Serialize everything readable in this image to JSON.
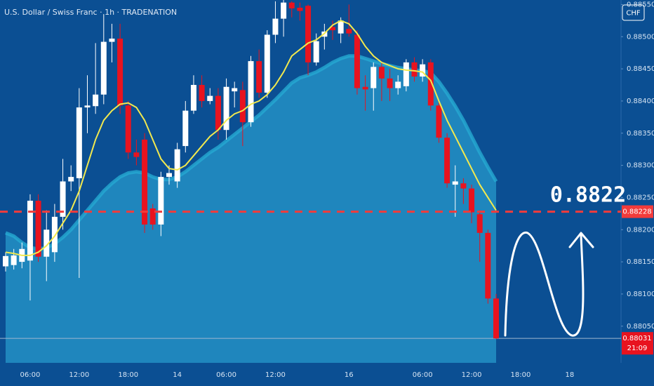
{
  "chart_data": {
    "type": "candlestick",
    "title": "U.S. Dollar / Swiss Franc · 1h · TRADENATION",
    "currency": "CHF",
    "categories": [
      null,
      null,
      null,
      "06:00",
      null,
      null,
      null,
      null,
      null,
      "12:00",
      null,
      null,
      null,
      null,
      null,
      "18:00",
      null,
      null,
      null,
      null,
      null,
      "14",
      null,
      null,
      null,
      null,
      null,
      "06:00",
      null,
      null,
      null,
      null,
      null,
      "12:00",
      null,
      null,
      null,
      null,
      null,
      null,
      null,
      null,
      "16",
      null,
      null,
      null,
      null,
      null,
      null,
      null,
      null,
      "06:00",
      null,
      null,
      null,
      null,
      null,
      "12:00",
      null,
      null,
      null,
      null,
      null,
      "18:00",
      null,
      null,
      null,
      null,
      null,
      "18",
      null
    ],
    "open": [
      0.88143,
      0.88145,
      0.8815,
      0.88152,
      0.88245,
      0.88158,
      0.88165,
      0.8822,
      0.88275,
      0.8828,
      0.8839,
      0.88392,
      0.8841,
      0.88492,
      0.88497,
      0.88393,
      0.8832,
      0.8834,
      0.88233,
      0.88208,
      0.88282,
      0.88275,
      0.8833,
      0.88385,
      0.88425,
      0.884,
      0.88408,
      0.88355,
      0.88415,
      0.88417,
      0.88367,
      0.88462,
      0.88413,
      0.88503,
      0.88528,
      0.88553,
      0.88545,
      0.88548,
      0.8846,
      0.885,
      0.88515,
      0.88505,
      0.88512,
      0.88503,
      0.88422,
      0.8842,
      0.88453,
      0.88435,
      0.8842,
      0.88423,
      0.8846,
      0.88438,
      0.8846,
      0.88393,
      0.88343,
      0.8827,
      0.88272,
      0.88264,
      0.88224,
      0.88195,
      0.88093,
      null,
      null,
      null,
      null,
      null,
      null,
      null,
      null,
      null,
      null
    ],
    "high": [
      0.88165,
      0.8817,
      0.8818,
      0.88255,
      0.88255,
      0.8823,
      0.8824,
      0.8831,
      0.883,
      0.8842,
      0.8844,
      0.8849,
      0.88535,
      0.8852,
      0.8852,
      0.884,
      0.8834,
      0.8835,
      0.8824,
      0.8829,
      0.883,
      0.88335,
      0.884,
      0.8844,
      0.8844,
      0.8842,
      0.8842,
      0.88435,
      0.8843,
      0.8843,
      0.8847,
      0.8848,
      0.8851,
      0.88555,
      0.88557,
      0.88555,
      0.88553,
      0.8855,
      0.88505,
      0.8852,
      0.88525,
      0.8853,
      0.8855,
      0.8851,
      0.8844,
      0.8846,
      0.8846,
      0.8845,
      0.8844,
      0.88465,
      0.88468,
      0.88465,
      0.88465,
      0.884,
      0.8835,
      0.883,
      0.8828,
      0.8827,
      0.8823,
      0.882,
      0.881,
      null,
      null,
      null,
      null,
      null,
      null,
      null,
      null,
      null,
      null
    ],
    "low": [
      0.88135,
      0.88138,
      0.8814,
      0.8809,
      0.8815,
      0.8812,
      0.8815,
      0.882,
      0.8826,
      0.88125,
      0.8835,
      0.8838,
      0.88395,
      0.8846,
      0.8838,
      0.8831,
      0.883,
      0.88195,
      0.882,
      0.8819,
      0.8827,
      0.88265,
      0.8832,
      0.8838,
      0.8839,
      0.88395,
      0.8834,
      0.8834,
      0.8839,
      0.8833,
      0.8836,
      0.88405,
      0.88405,
      0.8849,
      0.885,
      0.8853,
      0.88525,
      0.8844,
      0.88455,
      0.8848,
      0.88495,
      0.8849,
      0.885,
      0.8841,
      0.88385,
      0.88385,
      0.884,
      0.884,
      0.8841,
      0.88415,
      0.8843,
      0.8843,
      0.88385,
      0.88335,
      0.88265,
      0.8822,
      0.8824,
      0.8821,
      0.8815,
      0.88085,
      0.8803,
      null,
      null,
      null,
      null,
      null,
      null,
      null,
      null,
      null,
      null
    ],
    "close": [
      0.88159,
      0.8816,
      0.8817,
      0.88245,
      0.88158,
      0.882,
      0.8822,
      0.88275,
      0.88282,
      0.8839,
      0.88393,
      0.8841,
      0.88492,
      0.88497,
      0.88393,
      0.8832,
      0.88313,
      0.88208,
      0.88208,
      0.88282,
      0.88288,
      0.88325,
      0.88385,
      0.88425,
      0.884,
      0.88408,
      0.88355,
      0.88422,
      0.8842,
      0.88367,
      0.88462,
      0.88413,
      0.88503,
      0.88528,
      0.88553,
      0.88544,
      0.8854,
      0.8846,
      0.88493,
      0.88508,
      0.8851,
      0.88525,
      0.88505,
      0.8842,
      0.88418,
      0.88453,
      0.88435,
      0.8842,
      0.8843,
      0.8846,
      0.88438,
      0.88457,
      0.88393,
      0.88343,
      0.88272,
      0.88275,
      0.88264,
      0.88227,
      0.88195,
      0.88093,
      0.88031,
      null,
      null,
      null,
      null,
      null,
      null,
      null,
      null,
      null,
      null
    ],
    "up_color": "#ffffff",
    "down_color": "#e8131f",
    "ma_fast": {
      "color": "#f2e94e",
      "values": [
        0.88165,
        0.88163,
        0.8816,
        0.8816,
        0.88165,
        0.88175,
        0.8819,
        0.8821,
        0.8823,
        0.8826,
        0.883,
        0.8834,
        0.8837,
        0.88385,
        0.88395,
        0.88397,
        0.8839,
        0.8837,
        0.8834,
        0.8831,
        0.88295,
        0.88293,
        0.883,
        0.88315,
        0.8833,
        0.88345,
        0.88355,
        0.8837,
        0.8838,
        0.88385,
        0.88395,
        0.884,
        0.8841,
        0.88425,
        0.88445,
        0.8847,
        0.8848,
        0.8849,
        0.88495,
        0.88505,
        0.88518,
        0.88525,
        0.8852,
        0.88505,
        0.88485,
        0.8847,
        0.8846,
        0.88455,
        0.8845,
        0.88448,
        0.88447,
        0.88445,
        0.88432,
        0.884,
        0.8837,
        0.88345,
        0.8832,
        0.88295,
        0.8827,
        0.8825,
        0.8823,
        null,
        null,
        null,
        null,
        null,
        null,
        null,
        null,
        null,
        null
      ]
    },
    "ma_slow": {
      "color": "#25a9d2",
      "fill": "#1f86bd",
      "values": [
        0.88195,
        0.8819,
        0.8818,
        0.88172,
        0.8817,
        0.88172,
        0.88178,
        0.88188,
        0.882,
        0.88215,
        0.8823,
        0.88245,
        0.8826,
        0.88272,
        0.88282,
        0.88288,
        0.8829,
        0.88288,
        0.88282,
        0.88278,
        0.88278,
        0.88282,
        0.8829,
        0.883,
        0.8831,
        0.8832,
        0.88328,
        0.88338,
        0.88348,
        0.88358,
        0.88368,
        0.88378,
        0.8839,
        0.88402,
        0.88415,
        0.88428,
        0.88436,
        0.8844,
        0.88445,
        0.88452,
        0.8846,
        0.88466,
        0.8847,
        0.8847,
        0.88466,
        0.88462,
        0.88458,
        0.88455,
        0.88452,
        0.8845,
        0.88448,
        0.88447,
        0.88444,
        0.8843,
        0.88412,
        0.88392,
        0.8837,
        0.88345,
        0.8832,
        0.88297,
        0.88275,
        null,
        null,
        null,
        null,
        null,
        null,
        null,
        null,
        null,
        null
      ]
    },
    "ylim": [
      0.87993,
      0.88557
    ],
    "yticks": [
      {
        "value": 0.8805,
        "label": "0.88050"
      },
      {
        "value": 0.881,
        "label": "0.88100"
      },
      {
        "value": 0.8815,
        "label": "0.88150"
      },
      {
        "value": 0.882,
        "label": "0.88200"
      },
      {
        "value": 0.8825,
        "label": "0.88250"
      },
      {
        "value": 0.883,
        "label": "0.88300"
      },
      {
        "value": 0.8835,
        "label": "0.88350"
      },
      {
        "value": 0.884,
        "label": "0.88400"
      },
      {
        "value": 0.8845,
        "label": "0.88450"
      },
      {
        "value": 0.885,
        "label": "0.88500"
      },
      {
        "value": 0.8855,
        "label": "0.88550"
      }
    ],
    "level": {
      "value": 0.88228,
      "label": "0.88228",
      "color": "#f23b3b"
    },
    "annotation": {
      "value": 0.8822,
      "label": "0.8822"
    },
    "last_price": {
      "value": 0.88031,
      "label": "0.88031",
      "countdown": "21:09"
    }
  }
}
